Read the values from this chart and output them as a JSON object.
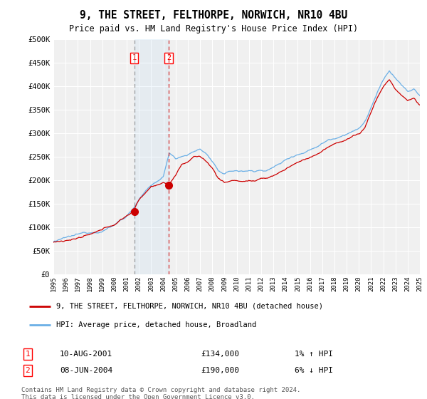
{
  "title": "9, THE STREET, FELTHORPE, NORWICH, NR10 4BU",
  "subtitle": "Price paid vs. HM Land Registry's House Price Index (HPI)",
  "ylabel_ticks": [
    "£0",
    "£50K",
    "£100K",
    "£150K",
    "£200K",
    "£250K",
    "£300K",
    "£350K",
    "£400K",
    "£450K",
    "£500K"
  ],
  "ytick_values": [
    0,
    50000,
    100000,
    150000,
    200000,
    250000,
    300000,
    350000,
    400000,
    450000,
    500000
  ],
  "hpi_color": "#6aafe6",
  "price_color": "#cc0000",
  "sale1_date": "10-AUG-2001",
  "sale1_price": 134000,
  "sale2_date": "08-JUN-2004",
  "sale2_price": 190000,
  "sale1_hpi_change": "1% ↑ HPI",
  "sale2_hpi_change": "6% ↓ HPI",
  "legend_line1": "9, THE STREET, FELTHORPE, NORWICH, NR10 4BU (detached house)",
  "legend_line2": "HPI: Average price, detached house, Broadland",
  "footer": "Contains HM Land Registry data © Crown copyright and database right 2024.\nThis data is licensed under the Open Government Licence v3.0.",
  "background_color": "#ffffff",
  "plot_bg_color": "#f0f0f0",
  "grid_color": "#ffffff",
  "sale1_x": 2001.62,
  "sale2_x": 2004.44
}
